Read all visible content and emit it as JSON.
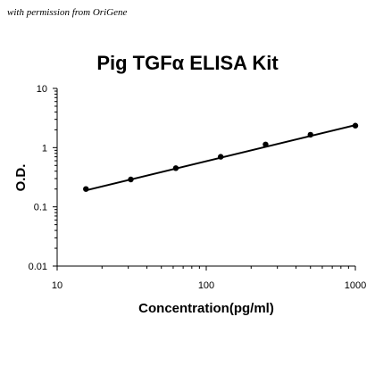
{
  "watermark": "with permission from OriGene",
  "chart_data": {
    "type": "line",
    "title": "Pig TGFα ELISA Kit",
    "xlabel": "Concentration(pg/ml)",
    "ylabel": "O.D.",
    "x_scale": "log",
    "y_scale": "log",
    "xlim": [
      10,
      1000
    ],
    "ylim": [
      0.01,
      10
    ],
    "x_ticks": [
      "10",
      "100",
      "1000"
    ],
    "y_ticks": [
      "0.01",
      "0.1",
      "1",
      "10"
    ],
    "grid": false,
    "legend": "none",
    "series": [
      {
        "x": [
          15.6,
          31.2,
          62.5,
          125,
          250,
          500,
          1000
        ],
        "y": [
          0.2,
          0.29,
          0.45,
          0.7,
          1.13,
          1.65,
          2.35
        ],
        "marker": "circle",
        "color": "#000000"
      }
    ],
    "fit_line": {
      "x": [
        15.6,
        1000
      ],
      "y": [
        0.19,
        2.4
      ],
      "color": "#000000"
    }
  }
}
